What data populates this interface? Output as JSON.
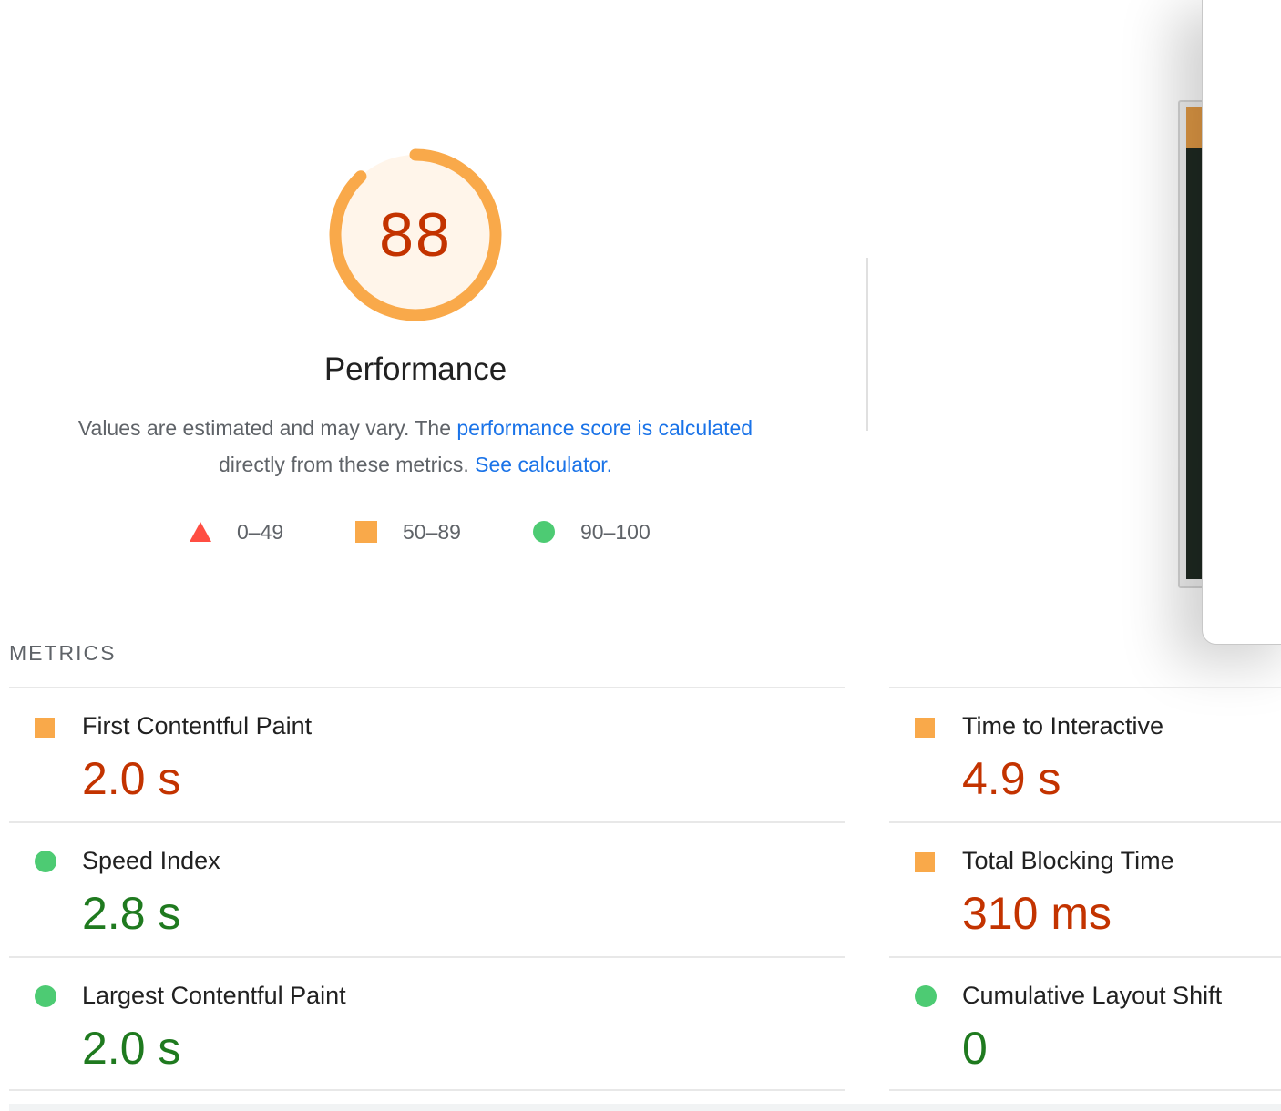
{
  "performance": {
    "score": "88",
    "score_fraction": 0.88,
    "title": "Performance",
    "colors": {
      "average": "#f9a94a",
      "score_text": "#c33300",
      "gauge_bg": "#fff5ea"
    }
  },
  "description": {
    "text_1": "Values are estimated and may vary. The ",
    "link_1": "performance score is calculated",
    "text_2": "directly from these metrics. ",
    "link_2": "See calculator."
  },
  "legend": [
    {
      "icon": "triangle-fail-icon",
      "label": "0–49",
      "color": "#ff4e42"
    },
    {
      "icon": "square-average-icon",
      "label": "50–89",
      "color": "#f9a94a"
    },
    {
      "icon": "circle-pass-icon",
      "label": "90–100",
      "color": "#4dcb73"
    }
  ],
  "metrics": {
    "header": "METRICS",
    "left": [
      {
        "name": "First Contentful Paint",
        "value": "2.0 s",
        "rating": "average"
      },
      {
        "name": "Speed Index",
        "value": "2.8 s",
        "rating": "pass"
      },
      {
        "name": "Largest Contentful Paint",
        "value": "2.0 s",
        "rating": "pass"
      }
    ],
    "right": [
      {
        "name": "Time to Interactive",
        "value": "4.9 s",
        "rating": "average"
      },
      {
        "name": "Total Blocking Time",
        "value": "310 ms",
        "rating": "average"
      },
      {
        "name": "Cumulative Layout Shift",
        "value": "0",
        "rating": "pass"
      }
    ]
  }
}
